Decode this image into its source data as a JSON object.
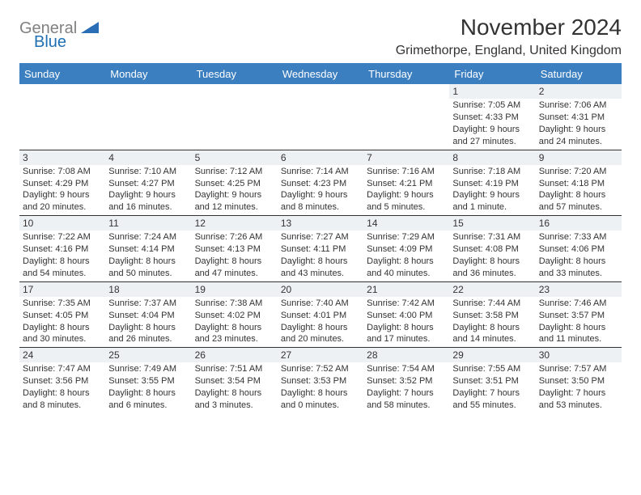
{
  "logo": {
    "gray_text": "General",
    "blue_text": "Blue",
    "shape_color": "#2a6fb5"
  },
  "title": "November 2024",
  "subtitle": "Grimethorpe, England, United Kingdom",
  "colors": {
    "header_bar": "#3c7fc0",
    "header_text": "#ffffff",
    "daynum_bg": "#eef1f4",
    "week_divider": "#333333",
    "page_bg": "#ffffff",
    "body_text": "#333333"
  },
  "fonts": {
    "title_size_pt": 22,
    "subtitle_size_pt": 13,
    "dow_size_pt": 10,
    "daynum_size_pt": 9,
    "body_size_pt": 8
  },
  "days_of_week": [
    "Sunday",
    "Monday",
    "Tuesday",
    "Wednesday",
    "Thursday",
    "Friday",
    "Saturday"
  ],
  "weeks": [
    [
      null,
      null,
      null,
      null,
      null,
      {
        "n": "1",
        "sunrise": "7:05 AM",
        "sunset": "4:33 PM",
        "daylight": "9 hours and 27 minutes."
      },
      {
        "n": "2",
        "sunrise": "7:06 AM",
        "sunset": "4:31 PM",
        "daylight": "9 hours and 24 minutes."
      }
    ],
    [
      {
        "n": "3",
        "sunrise": "7:08 AM",
        "sunset": "4:29 PM",
        "daylight": "9 hours and 20 minutes."
      },
      {
        "n": "4",
        "sunrise": "7:10 AM",
        "sunset": "4:27 PM",
        "daylight": "9 hours and 16 minutes."
      },
      {
        "n": "5",
        "sunrise": "7:12 AM",
        "sunset": "4:25 PM",
        "daylight": "9 hours and 12 minutes."
      },
      {
        "n": "6",
        "sunrise": "7:14 AM",
        "sunset": "4:23 PM",
        "daylight": "9 hours and 8 minutes."
      },
      {
        "n": "7",
        "sunrise": "7:16 AM",
        "sunset": "4:21 PM",
        "daylight": "9 hours and 5 minutes."
      },
      {
        "n": "8",
        "sunrise": "7:18 AM",
        "sunset": "4:19 PM",
        "daylight": "9 hours and 1 minute."
      },
      {
        "n": "9",
        "sunrise": "7:20 AM",
        "sunset": "4:18 PM",
        "daylight": "8 hours and 57 minutes."
      }
    ],
    [
      {
        "n": "10",
        "sunrise": "7:22 AM",
        "sunset": "4:16 PM",
        "daylight": "8 hours and 54 minutes."
      },
      {
        "n": "11",
        "sunrise": "7:24 AM",
        "sunset": "4:14 PM",
        "daylight": "8 hours and 50 minutes."
      },
      {
        "n": "12",
        "sunrise": "7:26 AM",
        "sunset": "4:13 PM",
        "daylight": "8 hours and 47 minutes."
      },
      {
        "n": "13",
        "sunrise": "7:27 AM",
        "sunset": "4:11 PM",
        "daylight": "8 hours and 43 minutes."
      },
      {
        "n": "14",
        "sunrise": "7:29 AM",
        "sunset": "4:09 PM",
        "daylight": "8 hours and 40 minutes."
      },
      {
        "n": "15",
        "sunrise": "7:31 AM",
        "sunset": "4:08 PM",
        "daylight": "8 hours and 36 minutes."
      },
      {
        "n": "16",
        "sunrise": "7:33 AM",
        "sunset": "4:06 PM",
        "daylight": "8 hours and 33 minutes."
      }
    ],
    [
      {
        "n": "17",
        "sunrise": "7:35 AM",
        "sunset": "4:05 PM",
        "daylight": "8 hours and 30 minutes."
      },
      {
        "n": "18",
        "sunrise": "7:37 AM",
        "sunset": "4:04 PM",
        "daylight": "8 hours and 26 minutes."
      },
      {
        "n": "19",
        "sunrise": "7:38 AM",
        "sunset": "4:02 PM",
        "daylight": "8 hours and 23 minutes."
      },
      {
        "n": "20",
        "sunrise": "7:40 AM",
        "sunset": "4:01 PM",
        "daylight": "8 hours and 20 minutes."
      },
      {
        "n": "21",
        "sunrise": "7:42 AM",
        "sunset": "4:00 PM",
        "daylight": "8 hours and 17 minutes."
      },
      {
        "n": "22",
        "sunrise": "7:44 AM",
        "sunset": "3:58 PM",
        "daylight": "8 hours and 14 minutes."
      },
      {
        "n": "23",
        "sunrise": "7:46 AM",
        "sunset": "3:57 PM",
        "daylight": "8 hours and 11 minutes."
      }
    ],
    [
      {
        "n": "24",
        "sunrise": "7:47 AM",
        "sunset": "3:56 PM",
        "daylight": "8 hours and 8 minutes."
      },
      {
        "n": "25",
        "sunrise": "7:49 AM",
        "sunset": "3:55 PM",
        "daylight": "8 hours and 6 minutes."
      },
      {
        "n": "26",
        "sunrise": "7:51 AM",
        "sunset": "3:54 PM",
        "daylight": "8 hours and 3 minutes."
      },
      {
        "n": "27",
        "sunrise": "7:52 AM",
        "sunset": "3:53 PM",
        "daylight": "8 hours and 0 minutes."
      },
      {
        "n": "28",
        "sunrise": "7:54 AM",
        "sunset": "3:52 PM",
        "daylight": "7 hours and 58 minutes."
      },
      {
        "n": "29",
        "sunrise": "7:55 AM",
        "sunset": "3:51 PM",
        "daylight": "7 hours and 55 minutes."
      },
      {
        "n": "30",
        "sunrise": "7:57 AM",
        "sunset": "3:50 PM",
        "daylight": "7 hours and 53 minutes."
      }
    ]
  ],
  "labels": {
    "sunrise": "Sunrise: ",
    "sunset": "Sunset: ",
    "daylight": "Daylight: "
  }
}
